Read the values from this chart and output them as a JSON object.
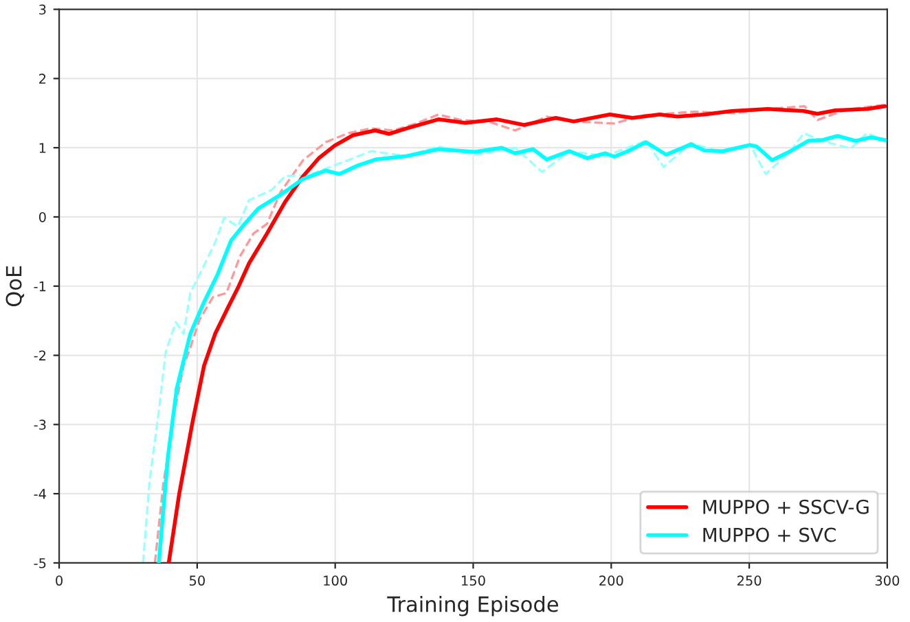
{
  "chart_data": {
    "type": "line",
    "xlabel": "Training Episode",
    "ylabel": "QoE",
    "xlim": [
      0,
      300
    ],
    "ylim": [
      -5,
      3
    ],
    "xticks": [
      0,
      50,
      100,
      150,
      200,
      250,
      300
    ],
    "yticks": [
      -5,
      -4,
      -3,
      -2,
      -1,
      0,
      1,
      2,
      3
    ],
    "grid": true,
    "legend": "bottom right",
    "marker": "none",
    "series": [
      {
        "color": "#ff9999",
        "line_style": "dashed",
        "x": [
          34.7,
          37.7,
          41.8,
          45.1,
          47.5,
          50.8,
          55.7,
          60.6,
          65.5,
          70.4,
          75.3,
          80.2,
          88.4,
          96.6,
          104.7,
          112.9,
          121.1,
          129.3,
          137.4,
          145.6,
          155.4,
          165.2,
          176.6,
          186.4,
          201,
          212,
          230,
          245,
          256.7,
          270,
          274.7,
          285,
          299
        ],
        "values": [
          -5,
          -3.87,
          -2.81,
          -2.15,
          -1.89,
          -1.49,
          -1.16,
          -1.1,
          -0.57,
          -0.24,
          -0.1,
          0.36,
          0.82,
          1.08,
          1.21,
          1.28,
          1.25,
          1.35,
          1.48,
          1.4,
          1.38,
          1.25,
          1.45,
          1.38,
          1.35,
          1.47,
          1.52,
          1.5,
          1.56,
          1.6,
          1.4,
          1.55,
          1.62
        ]
      },
      {
        "color": "#99ffff",
        "line_style": "dashed",
        "x": [
          30.4,
          32.8,
          36.1,
          38.6,
          42.3,
          45.1,
          47.5,
          52.5,
          56.5,
          59.8,
          64.7,
          68.8,
          77,
          81.9,
          90,
          104.7,
          113,
          126,
          137.4,
          150.5,
          165.2,
          175,
          184.8,
          197.9,
          212.6,
          219,
          228.9,
          240.4,
          250.2,
          256,
          264.9,
          269.8,
          276.3,
          286.8,
          292.6,
          299.2
        ],
        "values": [
          -5,
          -3.8,
          -2.81,
          -1.95,
          -1.52,
          -1.69,
          -1.1,
          -0.7,
          -0.37,
          -0.01,
          -0.14,
          0.24,
          0.39,
          0.59,
          0.6,
          0.82,
          0.95,
          0.88,
          1.02,
          0.9,
          1.0,
          0.65,
          0.95,
          0.88,
          1.1,
          0.72,
          1.07,
          0.93,
          1.05,
          0.62,
          0.95,
          1.21,
          1.1,
          0.99,
          1.21,
          1.1
        ]
      },
      {
        "name": "MUPPO + SSCV-G",
        "color": "#ff0000",
        "line_style": "solid",
        "x": [
          39.7,
          43.5,
          48.4,
          52.5,
          56.5,
          61.4,
          64.7,
          68.8,
          75.3,
          81.9,
          88.4,
          94.1,
          99.8,
          106.4,
          114.5,
          119.5,
          126,
          137.4,
          147.2,
          158.6,
          168.4,
          179.9,
          186.4,
          199.5,
          207.7,
          217.5,
          224,
          233.8,
          243.6,
          256.7,
          269.8,
          274.7,
          281.2,
          292.6,
          299.2
        ],
        "values": [
          -5,
          -4.0,
          -2.95,
          -2.15,
          -1.69,
          -1.29,
          -1.03,
          -0.67,
          -0.24,
          0.22,
          0.59,
          0.85,
          1.03,
          1.18,
          1.25,
          1.2,
          1.28,
          1.41,
          1.36,
          1.41,
          1.33,
          1.43,
          1.38,
          1.48,
          1.43,
          1.48,
          1.45,
          1.48,
          1.53,
          1.56,
          1.53,
          1.49,
          1.54,
          1.56,
          1.6
        ]
      },
      {
        "name": "MUPPO + SVC",
        "color": "#00ffff",
        "line_style": "solid",
        "x": [
          36.1,
          39.4,
          42.6,
          47.5,
          52.5,
          57.4,
          62.3,
          67.2,
          72.1,
          80.2,
          88.4,
          96.6,
          101.5,
          108,
          114.6,
          126,
          137.4,
          150.5,
          160.3,
          165.2,
          171.7,
          176.6,
          184.8,
          191.3,
          197.9,
          201.1,
          206,
          212.6,
          219.9,
          228.9,
          233.8,
          240.4,
          250.2,
          252.6,
          258.3,
          264.9,
          271.4,
          276.3,
          282,
          288.5,
          294.3,
          299.2
        ],
        "values": [
          -5,
          -3.47,
          -2.48,
          -1.69,
          -1.23,
          -0.83,
          -0.34,
          -0.1,
          0.12,
          0.32,
          0.55,
          0.67,
          0.62,
          0.74,
          0.83,
          0.88,
          0.98,
          0.94,
          1.0,
          0.92,
          0.98,
          0.83,
          0.95,
          0.85,
          0.92,
          0.87,
          0.95,
          1.08,
          0.9,
          1.05,
          0.96,
          0.95,
          1.04,
          1.02,
          0.82,
          0.95,
          1.1,
          1.11,
          1.17,
          1.1,
          1.15,
          1.11
        ]
      }
    ]
  }
}
